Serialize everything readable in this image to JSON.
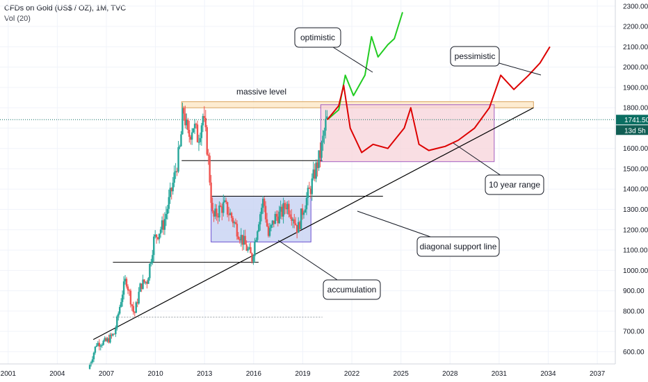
{
  "header": {
    "title": "CFDs on Gold (US$ / OZ), 1M, TVC",
    "indicator": "Vol (20)"
  },
  "price_tag": {
    "value": "1741.50",
    "countdown": "13d 5h",
    "color": "#0a6e62"
  },
  "colors": {
    "up_candle": "#26a69a",
    "down_candle": "#ef5350",
    "optimistic": "#22cc22",
    "pessimistic": "#dd0000",
    "accum_box": "#c7d2f3",
    "range_box": "#f7d6dc",
    "massive_box": "#fde7c5",
    "price_line": "#0a6e62"
  },
  "annotations": {
    "massive_level": "massive level",
    "optimistic": "optimistic",
    "pessimistic": "pessimistic",
    "ten_year_range": "10 year range",
    "diagonal_support": "diagonal support line",
    "accumulation": "accumulation"
  },
  "chart_data": {
    "type": "candlestick",
    "title": "CFDs on Gold (US$ / OZ), 1M, TVC",
    "x_ticks": [
      "2001",
      "2004",
      "2007",
      "2010",
      "2013",
      "2016",
      "2019",
      "2022",
      "2025",
      "2028",
      "2031",
      "2034",
      "2037"
    ],
    "y_ticks": [
      "2300.00",
      "2200.00",
      "2100.00",
      "2000.00",
      "1900.00",
      "1800.00",
      "1700.00",
      "1600.00",
      "1500.00",
      "1400.00",
      "1300.00",
      "1200.00",
      "1100.00",
      "1000.00",
      "900.00",
      "800.00",
      "700.00",
      "600.00"
    ],
    "ylim": [
      540,
      2330
    ],
    "xlim": [
      2000.5,
      2038.1
    ],
    "last_price": 1741.5,
    "price_series_approx": [
      [
        2005.9,
        515
      ],
      [
        2006.4,
        640
      ],
      [
        2007.0,
        650
      ],
      [
        2007.5,
        690
      ],
      [
        2008.0,
        900
      ],
      [
        2008.2,
        960
      ],
      [
        2008.7,
        780
      ],
      [
        2009.1,
        930
      ],
      [
        2009.5,
        950
      ],
      [
        2009.9,
        1150
      ],
      [
        2010.5,
        1230
      ],
      [
        2011.0,
        1400
      ],
      [
        2011.5,
        1600
      ],
      [
        2011.7,
        1800
      ],
      [
        2012.0,
        1650
      ],
      [
        2012.3,
        1720
      ],
      [
        2012.6,
        1650
      ],
      [
        2012.9,
        1760
      ],
      [
        2013.2,
        1580
      ],
      [
        2013.5,
        1250
      ],
      [
        2013.9,
        1300
      ],
      [
        2014.2,
        1320
      ],
      [
        2014.6,
        1270
      ],
      [
        2015.0,
        1200
      ],
      [
        2015.5,
        1120
      ],
      [
        2015.9,
        1060
      ],
      [
        2016.3,
        1250
      ],
      [
        2016.6,
        1350
      ],
      [
        2016.9,
        1170
      ],
      [
        2017.3,
        1260
      ],
      [
        2017.7,
        1280
      ],
      [
        2018.0,
        1330
      ],
      [
        2018.4,
        1270
      ],
      [
        2018.7,
        1200
      ],
      [
        2019.0,
        1300
      ],
      [
        2019.5,
        1410
      ],
      [
        2019.8,
        1500
      ],
      [
        2020.1,
        1580
      ],
      [
        2020.4,
        1720
      ],
      [
        2020.5,
        1741.5
      ]
    ],
    "projection_optimistic": [
      [
        2020.5,
        1741
      ],
      [
        2021.2,
        1790
      ],
      [
        2021.6,
        1960
      ],
      [
        2022.1,
        1860
      ],
      [
        2022.8,
        1960
      ],
      [
        2023.2,
        2150
      ],
      [
        2023.6,
        2050
      ],
      [
        2024.2,
        2110
      ],
      [
        2024.6,
        2140
      ],
      [
        2025.1,
        2270
      ]
    ],
    "projection_pessimistic": [
      [
        2020.5,
        1741
      ],
      [
        2021.2,
        1810
      ],
      [
        2021.5,
        1910
      ],
      [
        2021.9,
        1700
      ],
      [
        2022.6,
        1580
      ],
      [
        2023.3,
        1620
      ],
      [
        2024.2,
        1600
      ],
      [
        2025.2,
        1700
      ],
      [
        2025.6,
        1800
      ],
      [
        2026.1,
        1620
      ],
      [
        2026.7,
        1590
      ],
      [
        2027.7,
        1610
      ],
      [
        2028.5,
        1640
      ],
      [
        2029.5,
        1700
      ],
      [
        2030.4,
        1800
      ],
      [
        2031.1,
        1960
      ],
      [
        2031.9,
        1890
      ],
      [
        2032.8,
        1960
      ],
      [
        2033.5,
        2020
      ],
      [
        2034.1,
        2100
      ]
    ],
    "zones": {
      "massive_level": {
        "x": [
          2011.6,
          2033.1
        ],
        "y": [
          1800,
          1830
        ]
      },
      "ten_year_range": {
        "x": [
          2020.1,
          2030.7
        ],
        "y": [
          1535,
          1815
        ]
      },
      "accumulation": {
        "x": [
          2013.4,
          2019.5
        ],
        "y": [
          1140,
          1365
        ]
      }
    },
    "levels": [
      {
        "x": [
          2007.4,
          2016.3
        ],
        "y": 1040
      },
      {
        "x": [
          2011.6,
          2020.2
        ],
        "y": 1540
      },
      {
        "x": [
          2013.4,
          2023.9
        ],
        "y": 1365
      },
      {
        "x": [
          2007.4,
          2020.2
        ],
        "y": 770
      }
    ],
    "diagonal_support": {
      "from": [
        2006.2,
        660
      ],
      "to": [
        2033.1,
        1800
      ]
    }
  }
}
